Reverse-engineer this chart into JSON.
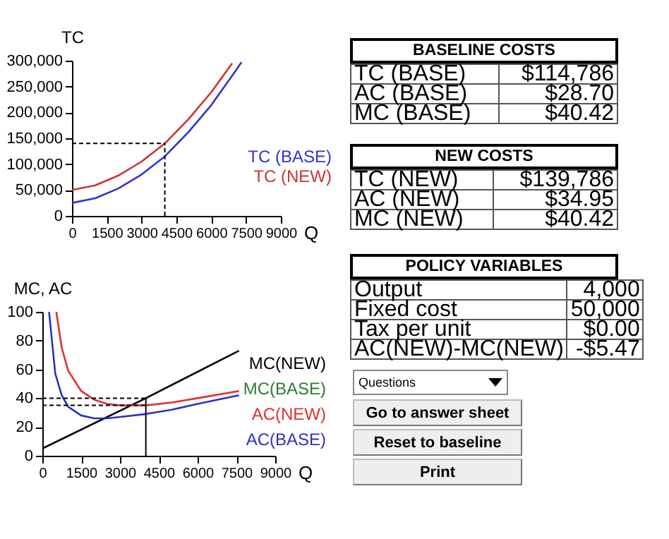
{
  "chart_data": [
    {
      "type": "line",
      "xlabel": "Q",
      "ylabel": "TC",
      "xlim": [
        0,
        9000
      ],
      "xticks": [
        0,
        1500,
        3000,
        4500,
        6000,
        7500,
        9000
      ],
      "ylim": [
        0,
        300000
      ],
      "yticks": [
        0,
        {
          "value": 50000,
          "label": "50,000"
        },
        {
          "value": 100000,
          "label": "100,000"
        },
        {
          "value": 150000,
          "label": "150,000"
        },
        {
          "value": 200000,
          "label": "200,000"
        },
        {
          "value": 250000,
          "label": "250,000"
        },
        {
          "value": 300000,
          "label": "300,000"
        }
      ],
      "series": [
        {
          "name": "TC (BASE)",
          "color": "#3333cc",
          "x": [
            0,
            1000,
            2000,
            3000,
            4000,
            5000,
            6000,
            7000,
            7300
          ],
          "values": [
            25000,
            34000,
            53000,
            80000,
            115000,
            161000,
            214000,
            277000,
            297000
          ]
        },
        {
          "name": "TC (NEW)",
          "color": "#cc3333",
          "x": [
            0,
            1000,
            2000,
            3000,
            4000,
            5000,
            6000,
            6900
          ],
          "values": [
            50000,
            59000,
            78000,
            105000,
            140000,
            186000,
            239000,
            295000
          ]
        }
      ],
      "ref_lines": [
        {
          "axis": "x",
          "value": 4000,
          "line_style": "dashed"
        },
        {
          "axis": "y",
          "value": 140000,
          "line_style": "dashed"
        }
      ]
    },
    {
      "type": "line",
      "xlabel": "Q",
      "ylabel": "MC, AC",
      "xlim": [
        0,
        9000
      ],
      "xticks": [
        0,
        1500,
        3000,
        4500,
        6000,
        7500,
        9000
      ],
      "ylim": [
        0,
        100
      ],
      "yticks": [
        0,
        20,
        40,
        60,
        80,
        100
      ],
      "series": [
        {
          "name": "MC(NEW)",
          "color": "#000000",
          "x": [
            0,
            4000,
            7600
          ],
          "values": [
            5,
            40,
            73
          ]
        },
        {
          "name": "MC(BASE)",
          "color": "#2e7d32",
          "values": [
            null
          ]
        },
        {
          "name": "AC(NEW)",
          "color": "#e03030",
          "x": [
            540,
            750,
            1000,
            1500,
            2000,
            2500,
            3000,
            3500,
            4000,
            5000,
            6000,
            7600
          ],
          "values": [
            100,
            75,
            59,
            45,
            39,
            36,
            35,
            35,
            35,
            37,
            40,
            45
          ]
        },
        {
          "name": "AC(BASE)",
          "color": "#3030c0",
          "x": [
            260,
            500,
            750,
            1000,
            1500,
            2000,
            2500,
            3000,
            4000,
            5000,
            6000,
            7600
          ],
          "values": [
            100,
            57,
            42,
            34,
            28,
            26,
            26,
            27,
            29,
            32,
            36,
            42
          ]
        }
      ],
      "ref_lines": [
        {
          "axis": "y",
          "value": 40,
          "line_style": "dashed"
        },
        {
          "axis": "y",
          "value": 35,
          "line_style": "dashed"
        },
        {
          "axis": "x",
          "value": 4000,
          "line_style": "solid"
        }
      ]
    },
    {
      "type": "other",
      "title": "BASELINE COSTS",
      "annotations": [
        "TC (BASE)",
        "$114,786",
        "AC (BASE)",
        "$28.70",
        "MC (BASE)",
        "$40.42"
      ]
    },
    {
      "type": "other",
      "title": "NEW COSTS",
      "annotations": [
        "TC (NEW)",
        "$139,786",
        "AC (NEW)",
        "$34.95",
        "MC (NEW)",
        "$40.42"
      ]
    },
    {
      "type": "other",
      "title": "POLICY VARIABLES",
      "annotations": [
        "Output",
        "4,000",
        "Fixed cost",
        "50,000",
        "Tax per unit",
        "$0.00",
        "AC(NEW)-MC(NEW)",
        "-$5.47"
      ]
    },
    {
      "type": "other",
      "annotations": [
        "Questions",
        "Go to answer sheet",
        "Reset to baseline",
        "Print"
      ]
    }
  ]
}
